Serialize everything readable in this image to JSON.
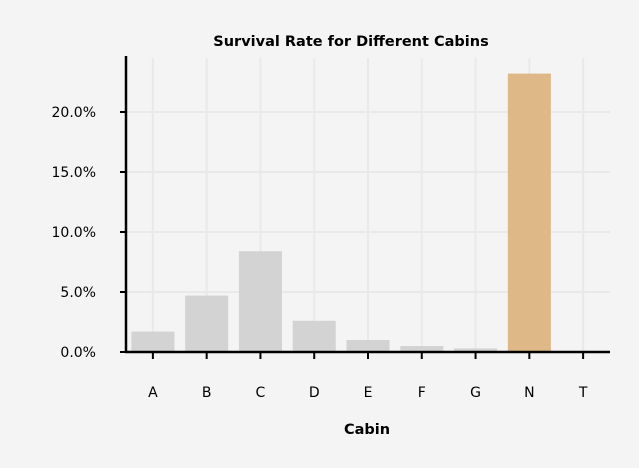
{
  "chart_data": {
    "type": "bar",
    "title": "Survival Rate for Different Cabins",
    "xlabel": "Cabin",
    "ylabel": "",
    "categories": [
      "A",
      "B",
      "C",
      "D",
      "E",
      "F",
      "G",
      "N",
      "T"
    ],
    "values": [
      0.017,
      0.047,
      0.084,
      0.026,
      0.01,
      0.005,
      0.003,
      0.232,
      0.0
    ],
    "ylim": [
      0,
      0.245
    ],
    "yticks": [
      0.0,
      0.05,
      0.1,
      0.15,
      0.2
    ],
    "ytick_labels": [
      "0.0%",
      "5.0%",
      "10.0%",
      "15.0%",
      "20.0%"
    ],
    "grid": true,
    "colors": {
      "default_bar": "#d3d3d3",
      "highlight_bar": "#deb887",
      "grid": "#e9e9e9",
      "axis": "#000000",
      "background": "#f4f4f4"
    },
    "highlight_category": "N"
  }
}
